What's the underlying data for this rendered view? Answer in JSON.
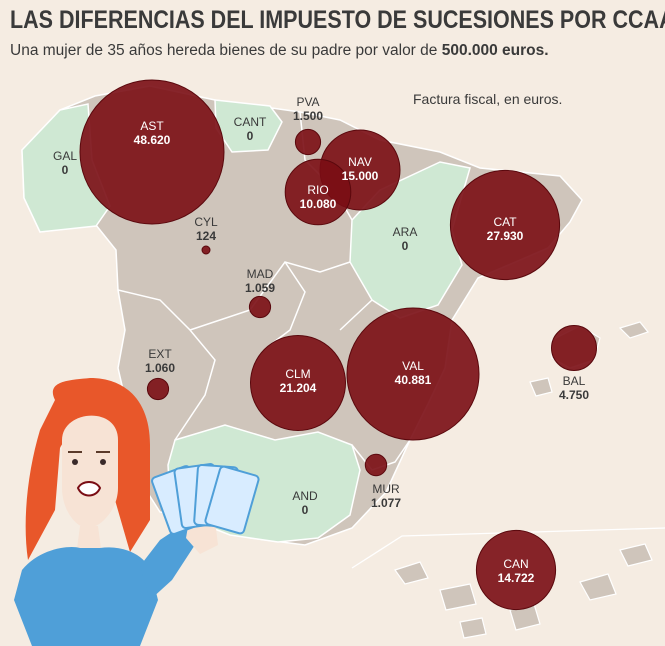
{
  "title": "LAS DIFERENCIAS DEL IMPUESTO DE SUCESIONES POR CCAA",
  "subtitle_prefix": "Una mujer de 35 años hereda bienes de su padre por valor de ",
  "subtitle_amount": "500.000 euros.",
  "note": "Factura fiscal, en euros.",
  "colors": {
    "background": "#f5ece2",
    "land": "#cfc5bb",
    "zero_tax": "#cfe8d3",
    "bubble": "#7a0d14",
    "text": "#3a3a3a"
  },
  "regions": [
    {
      "code": "AST",
      "value": 48620,
      "label": "48.620"
    },
    {
      "code": "CANT",
      "value": 0,
      "label": "0"
    },
    {
      "code": "PVA",
      "value": 1500,
      "label": "1.500"
    },
    {
      "code": "GAL",
      "value": 0,
      "label": "0"
    },
    {
      "code": "NAV",
      "value": 15000,
      "label": "15.000"
    },
    {
      "code": "RIO",
      "value": 10080,
      "label": "10.080"
    },
    {
      "code": "CAT",
      "value": 27930,
      "label": "27.930"
    },
    {
      "code": "CYL",
      "value": 124,
      "label": "124"
    },
    {
      "code": "ARA",
      "value": 0,
      "label": "0"
    },
    {
      "code": "MAD",
      "value": 1059,
      "label": "1.059"
    },
    {
      "code": "EXT",
      "value": 1060,
      "label": "1.060"
    },
    {
      "code": "CLM",
      "value": 21204,
      "label": "21.204"
    },
    {
      "code": "VAL",
      "value": 40881,
      "label": "40.881"
    },
    {
      "code": "BAL",
      "value": 4750,
      "label": "4.750"
    },
    {
      "code": "AND",
      "value": 0,
      "label": "0"
    },
    {
      "code": "MUR",
      "value": 1077,
      "label": "1.077"
    },
    {
      "code": "CAN",
      "value": 14722,
      "label": "14.722"
    }
  ]
}
